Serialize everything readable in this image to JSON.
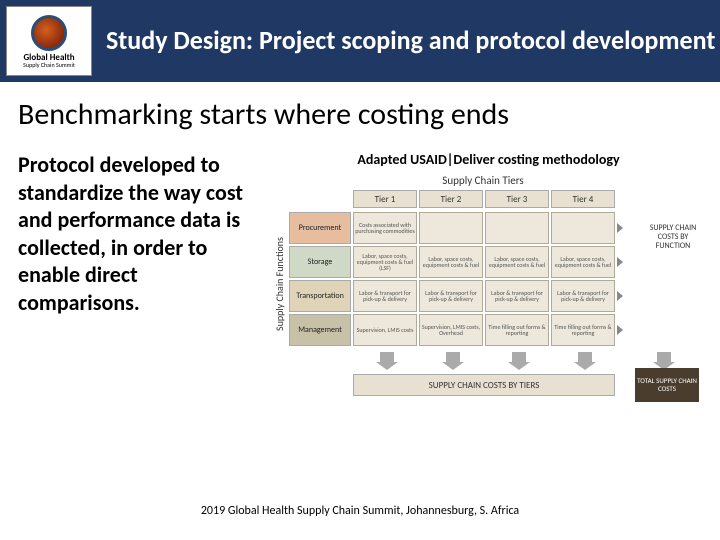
{
  "header": {
    "logo_main": "Global Health",
    "logo_sub": "Supply Chain Summit",
    "title": "Study Design: Project scoping and protocol development"
  },
  "subtitle": "Benchmarking starts where costing ends",
  "body_text": "Protocol developed to standardize the way cost and performance data is collected, in order to enable direct comparisons.",
  "diagram": {
    "caption": "Adapted USAID|Deliver costing methodology",
    "tiers_title": "Supply Chain Tiers",
    "functions_title": "Supply Chain Functions",
    "tier_headers": [
      "Tier 1",
      "Tier 2",
      "Tier 3",
      "Tier 4"
    ],
    "row_colors": [
      "#e7bda0",
      "#d0d9c5",
      "#e0d4b8",
      "#c7c1a8"
    ],
    "rows": [
      {
        "label": "Procurement",
        "cells": [
          "Costs associated with purchasing commodities",
          "",
          "",
          ""
        ]
      },
      {
        "label": "Storage",
        "cells": [
          "Labor, space costs, equipment costs & fuel (LSF)",
          "Labor, space costs, equipment costs & fuel",
          "Labor, space costs, equipment costs & fuel",
          "Labor, space costs, equipment costs & fuel"
        ]
      },
      {
        "label": "Transportation",
        "cells": [
          "Labor & transport for pick-up & delivery",
          "Labor & transport for pick-up & delivery",
          "Labor & transport for pick-up & delivery",
          "Labor & transport for pick-up & delivery"
        ]
      },
      {
        "label": "Management",
        "cells": [
          "Supervision, LMIS costs",
          "Supervision, LMIS costs, Overhead",
          "Time filling out forms & reporting",
          "Time filling out forms & reporting"
        ]
      }
    ],
    "side_label": "SUPPLY CHAIN COSTS BY FUNCTION",
    "tier_cost_label": "SUPPLY CHAIN COSTS BY TIERS",
    "total_label": "TOTAL SUPPLY CHAIN COSTS"
  },
  "footer": "2019 Global Health Supply Chain Summit, Johannesburg, S. Africa",
  "colors": {
    "header_bg": "#1f3864",
    "cell_bg": "#ede8db",
    "tier_bg": "#e8e1d2",
    "total_bg": "#4a3d2e"
  }
}
